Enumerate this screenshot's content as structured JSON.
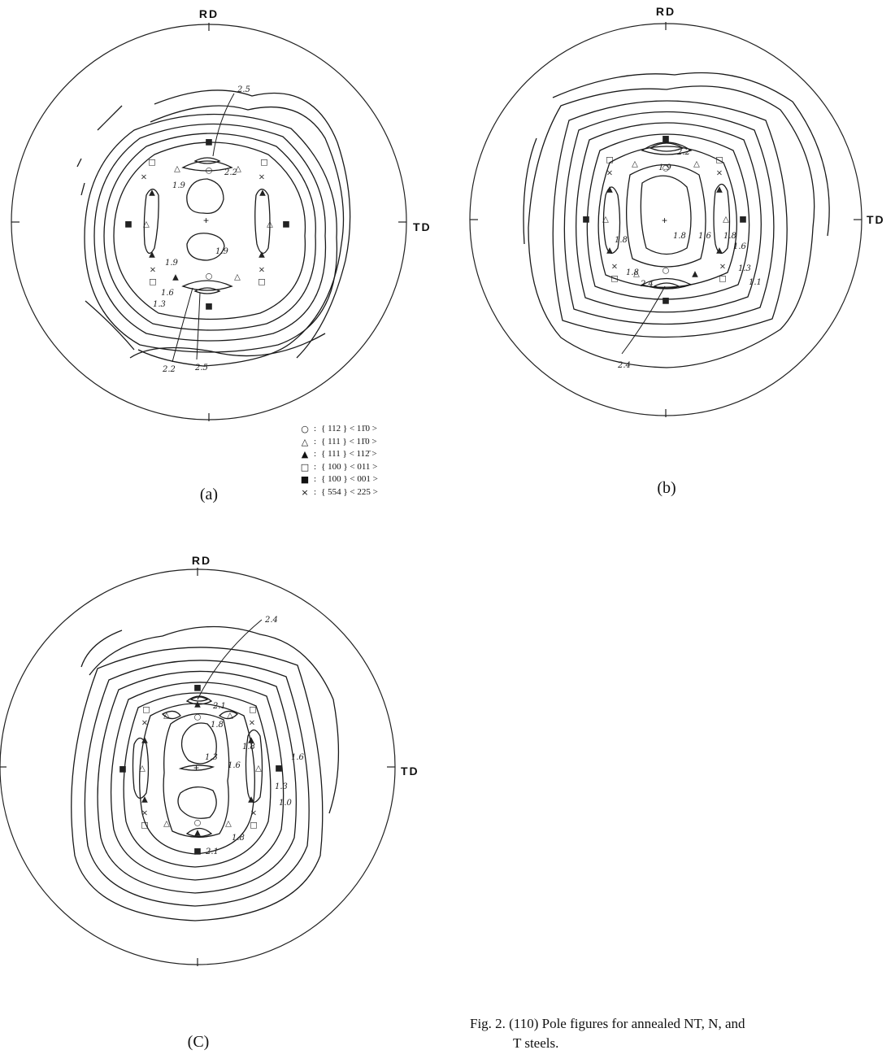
{
  "axes": {
    "rd": "RD",
    "td": "TD"
  },
  "panels": [
    {
      "id": "a",
      "label": "(a)",
      "annotations": [
        "2.5",
        "2.2",
        "1.9",
        "1.9",
        "1.9",
        "1.6",
        "1.3",
        "2.2",
        "2.5"
      ]
    },
    {
      "id": "b",
      "label": "(b)",
      "annotations": [
        "2.4",
        "2.2",
        "1.9",
        "1.8",
        "1.6",
        "1.8",
        "1.6",
        "1.8",
        "1.3",
        "1.1",
        "1.8",
        "2.4"
      ]
    },
    {
      "id": "c",
      "label": "(C)",
      "annotations": [
        "2.4",
        "2.1",
        "1.8",
        "1.8",
        "1.3",
        "1.6",
        "1.6",
        "1.3",
        "1.0",
        "1.8",
        "2.1"
      ]
    }
  ],
  "legend": [
    {
      "icon": "open-circle-icon",
      "glyph": "○",
      "plane": "{ 112 }",
      "direction": "< 11̄0 >"
    },
    {
      "icon": "open-triangle-icon",
      "glyph": "△",
      "plane": "{ 111 }",
      "direction": "< 11̄0 >"
    },
    {
      "icon": "filled-triangle-icon",
      "glyph": "▲",
      "plane": "{ 111 }",
      "direction": "< 112̄ >"
    },
    {
      "icon": "open-square-icon",
      "glyph": "□",
      "plane": "{ 100 }",
      "direction": "< 011 >"
    },
    {
      "icon": "filled-square-icon",
      "glyph": "■",
      "plane": "{ 100 }",
      "direction": "< 001 >"
    },
    {
      "icon": "cross-icon",
      "glyph": "×",
      "plane": "{ 554 }",
      "direction": "< 225 >"
    }
  ],
  "caption": {
    "line1": "Fig. 2. (110) Pole figures for annealed NT, N, and",
    "line2": "T steels."
  }
}
